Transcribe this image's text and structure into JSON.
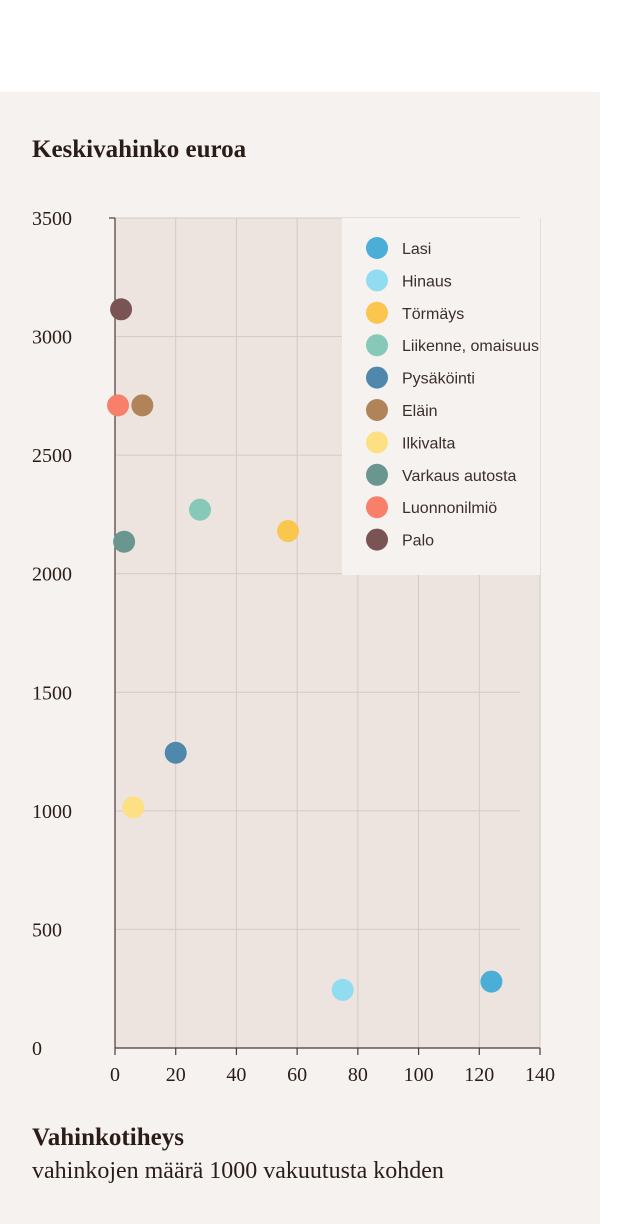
{
  "chart_data": {
    "type": "scatter",
    "title": "",
    "ylabel": "Keskivahinko euroa",
    "xlabel": "Vahinkotiheys",
    "xlabel_sub": "vahinkojen määrä 1000 vakuutusta kohden",
    "xlim": [
      0,
      140
    ],
    "ylim": [
      0,
      3500
    ],
    "xticks": [
      0,
      20,
      40,
      60,
      80,
      100,
      120,
      140
    ],
    "yticks": [
      0,
      500,
      1000,
      1500,
      2000,
      2500,
      3000,
      3500
    ],
    "grid": true,
    "legend_position": "top-right",
    "series": [
      {
        "name": "Lasi",
        "color": "#4aaed6",
        "x": 124,
        "y": 280
      },
      {
        "name": "Hinaus",
        "color": "#92dcf2",
        "x": 75,
        "y": 245
      },
      {
        "name": "Törmäys",
        "color": "#fbc64d",
        "x": 57,
        "y": 2180
      },
      {
        "name": "Liikenne, omaisuus",
        "color": "#86c9b8",
        "x": 28,
        "y": 2270
      },
      {
        "name": "Pysäköinti",
        "color": "#4f88ac",
        "x": 20,
        "y": 1245
      },
      {
        "name": "Eläin",
        "color": "#b08358",
        "x": 9,
        "y": 2710
      },
      {
        "name": "Ilkivalta",
        "color": "#fde084",
        "x": 6,
        "y": 1015
      },
      {
        "name": "Varkaus autosta",
        "color": "#6a9690",
        "x": 3,
        "y": 2135
      },
      {
        "name": "Luonnonilmiö",
        "color": "#f8806a",
        "x": 1,
        "y": 2710
      },
      {
        "name": "Palo",
        "color": "#7a5354",
        "x": 2,
        "y": 3115
      }
    ]
  }
}
